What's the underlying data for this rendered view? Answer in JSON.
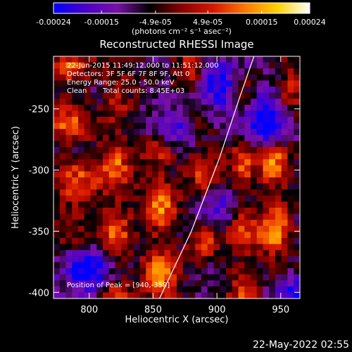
{
  "chart_data": {
    "type": "heatmap",
    "title": "Reconstructed RHESSI Image",
    "xlabel": "Heliocentric X (arcsec)",
    "ylabel": "Heliocentric Y (arcsec)",
    "xlim": [
      772,
      965
    ],
    "ylim": [
      -405,
      -207
    ],
    "x_ticks": [
      800,
      850,
      900,
      950
    ],
    "y_ticks": [
      -250,
      -300,
      -350,
      -400
    ],
    "colorbar": {
      "min": -0.00024,
      "max": 0.00024,
      "tick_values": [
        -0.00024,
        -0.00015,
        -4.9e-05,
        4.9e-05,
        0.00015,
        0.00024
      ],
      "tick_labels": [
        "-0.00024",
        "-0.00015",
        "-4.9e-05",
        "4.9e-05",
        "0.00015",
        "0.00024"
      ],
      "unit_label": "(photons cm⁻² s⁻¹ asec⁻²)",
      "colormap": [
        "#0000ff",
        "#4a00c8",
        "#7a10a8",
        "#000000",
        "#8a0000",
        "#d81800",
        "#ff7a00",
        "#ffd200",
        "#ffffff"
      ]
    },
    "annotations": {
      "time_range": "22-Jun-2015 11:49:12.000 to 11:51:12.000",
      "detectors": "Detectors: 3F 5F 6F 7F 8F 9F, Att 0",
      "energy_range": "Energy Range: 25.0 - 50.0 keV",
      "clean_label": "Clean",
      "total_counts": "Total counts: 8.45E+03",
      "peak": "Position of Peak = [940,-359]"
    },
    "limb_curve": [
      [
        855,
        -405
      ],
      [
        880,
        -350
      ],
      [
        902,
        -290
      ],
      [
        918,
        -240
      ],
      [
        929,
        -207
      ]
    ],
    "flux_grid": {
      "x_start": 772,
      "x_end": 965,
      "y_start": -207,
      "y_end": -405,
      "nx": 40,
      "ny": 40,
      "bright_ridges": [
        {
          "x": 785,
          "y0": -215,
          "y1": -265,
          "amp": 0.8,
          "w": 12
        },
        {
          "x": 790,
          "y0": -300,
          "y1": -350,
          "amp": 0.75,
          "w": 12
        },
        {
          "x": 820,
          "y0": -215,
          "y1": -400,
          "amp": 0.85,
          "w": 9
        },
        {
          "x": 855,
          "y0": -290,
          "y1": -400,
          "amp": 0.95,
          "w": 10
        },
        {
          "x": 880,
          "y0": -215,
          "y1": -255,
          "amp": 0.7,
          "w": 8
        },
        {
          "x": 890,
          "y0": -280,
          "y1": -360,
          "amp": 0.7,
          "w": 9
        },
        {
          "x": 920,
          "y0": -230,
          "y1": -400,
          "amp": 0.75,
          "w": 8
        },
        {
          "x": 945,
          "y0": -290,
          "y1": -370,
          "amp": 1.0,
          "w": 9
        },
        {
          "x": 958,
          "y0": -210,
          "y1": -260,
          "amp": 0.6,
          "w": 7
        }
      ],
      "dark_spots": [
        {
          "x": 800,
          "y": -380,
          "amp": -0.9,
          "r": 14
        },
        {
          "x": 870,
          "y": -265,
          "amp": -0.7,
          "r": 12
        },
        {
          "x": 905,
          "y": -230,
          "amp": -0.8,
          "r": 14
        },
        {
          "x": 935,
          "y": -260,
          "amp": -0.85,
          "r": 16
        },
        {
          "x": 900,
          "y": -330,
          "amp": -0.6,
          "r": 12
        },
        {
          "x": 815,
          "y": -240,
          "amp": -0.5,
          "r": 10
        },
        {
          "x": 958,
          "y": -400,
          "amp": -0.6,
          "r": 10
        }
      ]
    }
  },
  "footer": {
    "timestamp": "22-May-2022 02:55"
  }
}
